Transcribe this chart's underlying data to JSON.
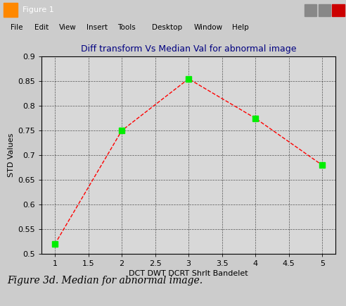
{
  "title": "Diff transform Vs Median Val for abnormal image",
  "xlabel": "DCT DWT DCRT Shrlt Bandelet",
  "ylabel": "STD Values",
  "x": [
    1,
    2,
    3,
    4,
    5
  ],
  "y": [
    0.52,
    0.75,
    0.855,
    0.775,
    0.68
  ],
  "xlim": [
    0.8,
    5.2
  ],
  "ylim": [
    0.5,
    0.9
  ],
  "yticks": [
    0.5,
    0.55,
    0.6,
    0.65,
    0.7,
    0.75,
    0.8,
    0.85,
    0.9
  ],
  "xticks": [
    1,
    1.5,
    2,
    2.5,
    3,
    3.5,
    4,
    4.5,
    5
  ],
  "line_color": "red",
  "marker_color": "#00ee00",
  "plot_bg_color": "#d8d8d8",
  "window_bg": "#ece9d8",
  "caption": "Figure 3d. Median for abnormal image.",
  "title_color": "#000080",
  "title_fontsize": 9,
  "label_fontsize": 8,
  "tick_fontsize": 8,
  "caption_fontsize": 10,
  "window_title": "Figure 1",
  "menu_items": [
    "File",
    "Edit",
    "View",
    "Insert",
    "Tools",
    "Desktop",
    "Window",
    "Help"
  ],
  "titlebar_color": "#0a246a",
  "titlebar_text_color": "white"
}
